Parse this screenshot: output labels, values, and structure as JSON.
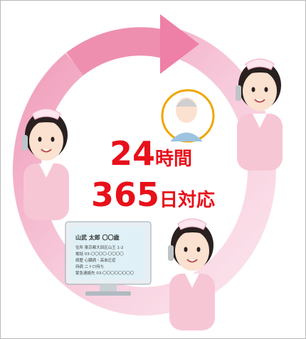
{
  "headline": {
    "hours": "24",
    "hours_unit": "時間",
    "days": "365",
    "days_unit": "日対応"
  },
  "monitor": {
    "name_line": "山武 太郎 〇〇歳",
    "lines": [
      "住所 東京都大田区山王 1-2",
      "電話 03-〇〇〇〇-〇〇〇〇",
      "病歴 心臓病・高血圧症",
      "持病 ニトロ持ち",
      "緊急連絡先 03-〇〇〇〇〇〇〇〇"
    ]
  }
}
